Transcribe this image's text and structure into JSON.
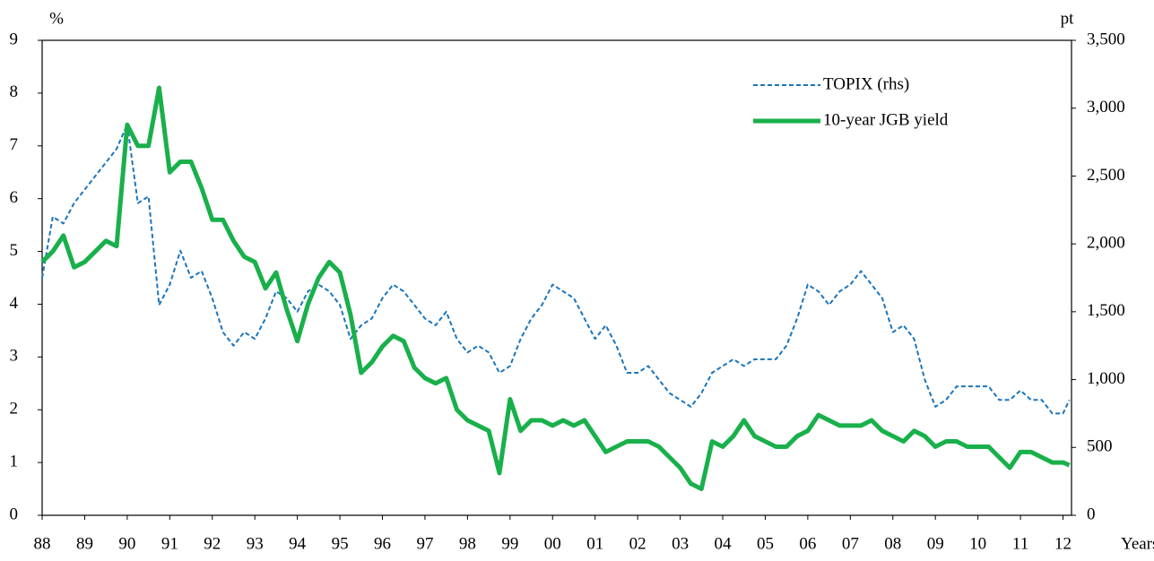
{
  "chart_data": {
    "type": "line",
    "y_unit": "%",
    "y2_unit": "pt",
    "x_label": "Years",
    "x": [
      1988,
      1988.25,
      1988.5,
      1988.75,
      1989,
      1989.25,
      1989.5,
      1989.75,
      1990,
      1990.25,
      1990.5,
      1990.75,
      1991,
      1991.25,
      1991.5,
      1991.75,
      1992,
      1992.25,
      1992.5,
      1992.75,
      1993,
      1993.25,
      1993.5,
      1993.75,
      1994,
      1994.25,
      1994.5,
      1994.75,
      1995,
      1995.25,
      1995.5,
      1995.75,
      1996,
      1996.25,
      1996.5,
      1996.75,
      1997,
      1997.25,
      1997.5,
      1997.75,
      1998,
      1998.25,
      1998.5,
      1998.75,
      1999,
      1999.25,
      1999.5,
      1999.75,
      2000,
      2000.25,
      2000.5,
      2000.75,
      2001,
      2001.25,
      2001.5,
      2001.75,
      2002,
      2002.25,
      2002.5,
      2002.75,
      2003,
      2003.25,
      2003.5,
      2003.75,
      2004,
      2004.25,
      2004.5,
      2004.75,
      2005,
      2005.25,
      2005.5,
      2005.75,
      2006,
      2006.25,
      2006.5,
      2006.75,
      2007,
      2007.25,
      2007.5,
      2007.75,
      2008,
      2008.25,
      2008.5,
      2008.75,
      2009,
      2009.25,
      2009.5,
      2009.75,
      2010,
      2010.25,
      2010.5,
      2010.75,
      2011,
      2011.25,
      2011.5,
      2011.75,
      2012,
      2012.15
    ],
    "series": [
      {
        "name": "TOPIX (rhs)",
        "color": "#1a75bc",
        "linestyle": "dashed",
        "linewidth": 2,
        "axis": "y2",
        "values": [
          1750,
          2200,
          2150,
          2300,
          2400,
          2500,
          2600,
          2700,
          2880,
          2300,
          2350,
          1550,
          1700,
          1950,
          1750,
          1800,
          1600,
          1350,
          1250,
          1350,
          1300,
          1450,
          1650,
          1600,
          1500,
          1650,
          1700,
          1650,
          1550,
          1300,
          1400,
          1450,
          1600,
          1700,
          1650,
          1550,
          1450,
          1400,
          1500,
          1300,
          1200,
          1250,
          1200,
          1050,
          1100,
          1300,
          1450,
          1550,
          1700,
          1650,
          1600,
          1450,
          1300,
          1400,
          1250,
          1050,
          1050,
          1100,
          1000,
          900,
          850,
          800,
          900,
          1050,
          1100,
          1150,
          1100,
          1150,
          1150,
          1150,
          1250,
          1450,
          1700,
          1650,
          1550,
          1650,
          1700,
          1800,
          1700,
          1600,
          1350,
          1400,
          1300,
          1000,
          800,
          850,
          950,
          950,
          950,
          950,
          850,
          850,
          920,
          850,
          850,
          750,
          750,
          850
        ]
      },
      {
        "name": "10-year JGB yield",
        "color": "#19b04b",
        "linestyle": "solid",
        "linewidth": 5,
        "values": [
          4.8,
          5.0,
          5.3,
          4.7,
          4.8,
          5.0,
          5.2,
          5.1,
          7.4,
          7.0,
          7.0,
          8.1,
          6.5,
          6.7,
          6.7,
          6.2,
          5.6,
          5.6,
          5.2,
          4.9,
          4.8,
          4.3,
          4.6,
          3.9,
          3.3,
          4.0,
          4.5,
          4.8,
          4.6,
          3.8,
          2.7,
          2.9,
          3.2,
          3.4,
          3.3,
          2.8,
          2.6,
          2.5,
          2.6,
          2.0,
          1.8,
          1.7,
          1.6,
          0.8,
          2.2,
          1.6,
          1.8,
          1.8,
          1.7,
          1.8,
          1.7,
          1.8,
          1.5,
          1.2,
          1.3,
          1.4,
          1.4,
          1.4,
          1.3,
          1.1,
          0.9,
          0.6,
          0.5,
          1.4,
          1.3,
          1.5,
          1.8,
          1.5,
          1.4,
          1.3,
          1.3,
          1.5,
          1.6,
          1.9,
          1.8,
          1.7,
          1.7,
          1.7,
          1.8,
          1.6,
          1.5,
          1.4,
          1.6,
          1.5,
          1.3,
          1.4,
          1.4,
          1.3,
          1.3,
          1.3,
          1.1,
          0.9,
          1.2,
          1.2,
          1.1,
          1.0,
          1.0,
          0.95
        ]
      }
    ],
    "xlim": [
      1988,
      2012.2
    ],
    "xticks": [
      {
        "value": 1988,
        "label": "88"
      },
      {
        "value": 1989,
        "label": "89"
      },
      {
        "value": 1990,
        "label": "90"
      },
      {
        "value": 1991,
        "label": "91"
      },
      {
        "value": 1992,
        "label": "92"
      },
      {
        "value": 1993,
        "label": "93"
      },
      {
        "value": 1994,
        "label": "94"
      },
      {
        "value": 1995,
        "label": "95"
      },
      {
        "value": 1996,
        "label": "96"
      },
      {
        "value": 1997,
        "label": "97"
      },
      {
        "value": 1998,
        "label": "98"
      },
      {
        "value": 1999,
        "label": "99"
      },
      {
        "value": 2000,
        "label": "00"
      },
      {
        "value": 2001,
        "label": "01"
      },
      {
        "value": 2002,
        "label": "02"
      },
      {
        "value": 2003,
        "label": "03"
      },
      {
        "value": 2004,
        "label": "04"
      },
      {
        "value": 2005,
        "label": "05"
      },
      {
        "value": 2006,
        "label": "06"
      },
      {
        "value": 2007,
        "label": "07"
      },
      {
        "value": 2008,
        "label": "08"
      },
      {
        "value": 2009,
        "label": "09"
      },
      {
        "value": 2010,
        "label": "10"
      },
      {
        "value": 2011,
        "label": "11"
      },
      {
        "value": 2012,
        "label": "12"
      }
    ],
    "ylim": [
      0,
      9
    ],
    "yticks": [
      0,
      1,
      2,
      3,
      4,
      5,
      6,
      7,
      8,
      9
    ],
    "y2lim": [
      0,
      3500
    ],
    "y2ticks": [
      0,
      500,
      {
        "value": 1000,
        "label": "1,000"
      },
      {
        "value": 1500,
        "label": "1,500"
      },
      {
        "value": 2000,
        "label": "2,000"
      },
      {
        "value": 2500,
        "label": "2,500"
      },
      {
        "value": 3000,
        "label": "3,000"
      },
      {
        "value": 3500,
        "label": "3,500"
      }
    ],
    "grid": false,
    "legend": "upper right"
  }
}
